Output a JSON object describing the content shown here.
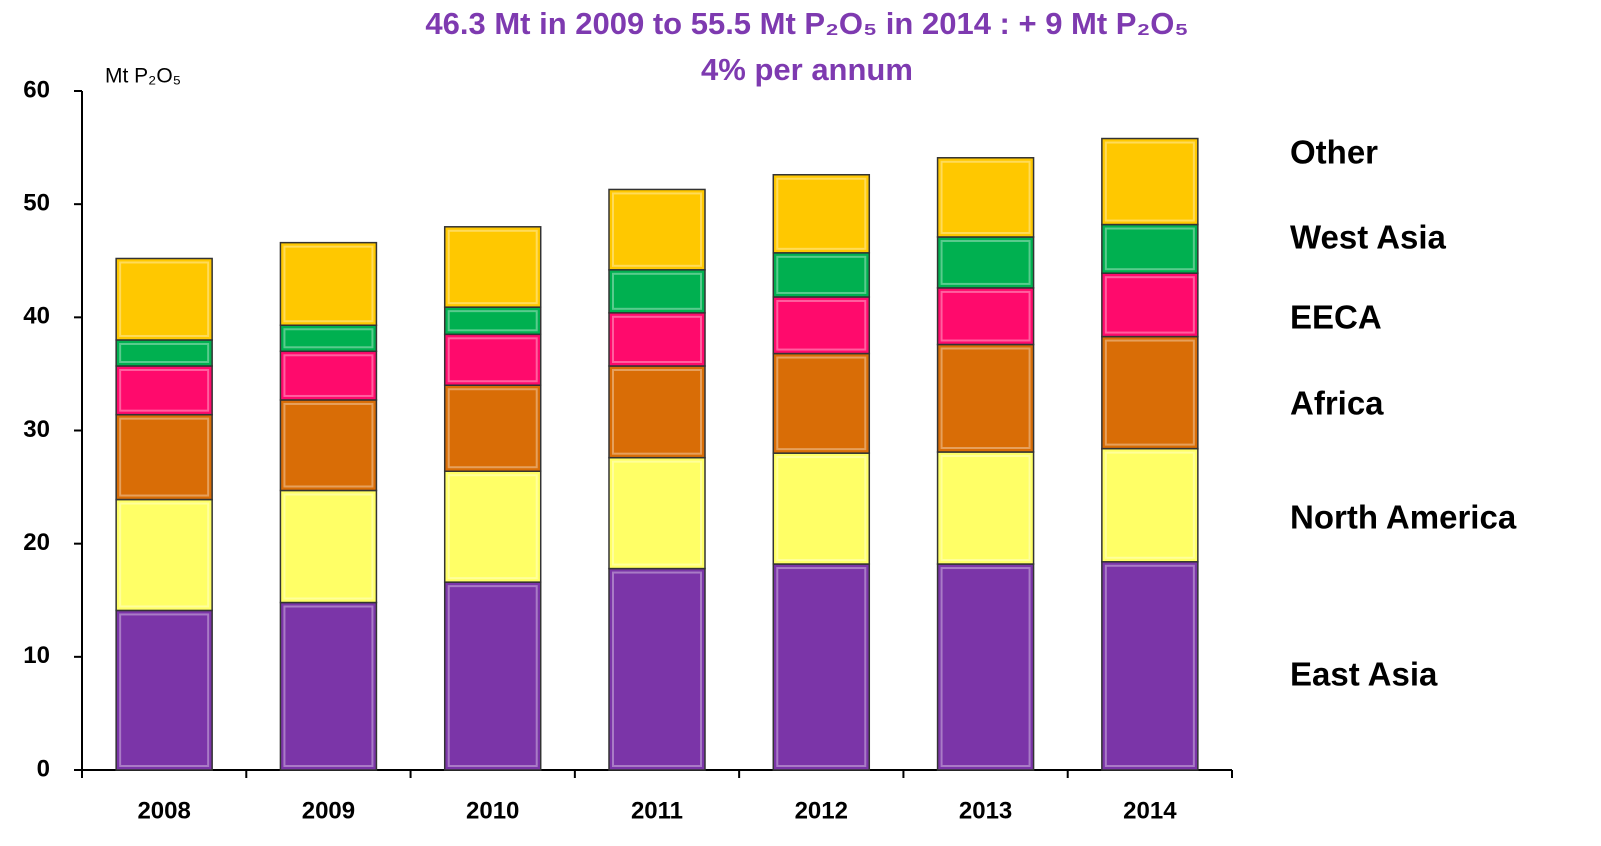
{
  "chart_data": {
    "type": "stacked_bar",
    "title": "46.3 Mt in 2009 to  55.5 Mt P₂O₅ in 2014 : + 9 Mt P₂O₅",
    "subtitle": "4% per annum",
    "y_axis_label": "Mt P₂O₅",
    "categories": [
      "2008",
      "2009",
      "2010",
      "2011",
      "2012",
      "2013",
      "2014"
    ],
    "series": [
      {
        "name": "East Asia",
        "color": "#7b35a8",
        "values": [
          14.1,
          14.8,
          16.6,
          17.8,
          18.2,
          18.2,
          18.4
        ]
      },
      {
        "name": "North America",
        "color": "#ffff66",
        "values": [
          9.8,
          9.9,
          9.8,
          9.8,
          9.8,
          9.9,
          10.0
        ]
      },
      {
        "name": "Africa",
        "color": "#d96d06",
        "values": [
          7.5,
          8.0,
          7.6,
          8.1,
          8.8,
          9.5,
          9.9
        ]
      },
      {
        "name": "EECA",
        "color": "#ff0a6c",
        "values": [
          4.3,
          4.3,
          4.5,
          4.7,
          5.0,
          5.0,
          5.6
        ]
      },
      {
        "name": "West Asia",
        "color": "#00b050",
        "values": [
          2.3,
          2.3,
          2.4,
          3.8,
          3.9,
          4.5,
          4.3
        ]
      },
      {
        "name": "Other",
        "color": "#ffc800",
        "values": [
          7.2,
          7.3,
          7.1,
          7.1,
          6.9,
          7.0,
          7.6
        ]
      }
    ],
    "ylim": [
      0,
      60
    ],
    "yticks": [
      0,
      10,
      20,
      30,
      40,
      50,
      60
    ],
    "grid": false
  }
}
